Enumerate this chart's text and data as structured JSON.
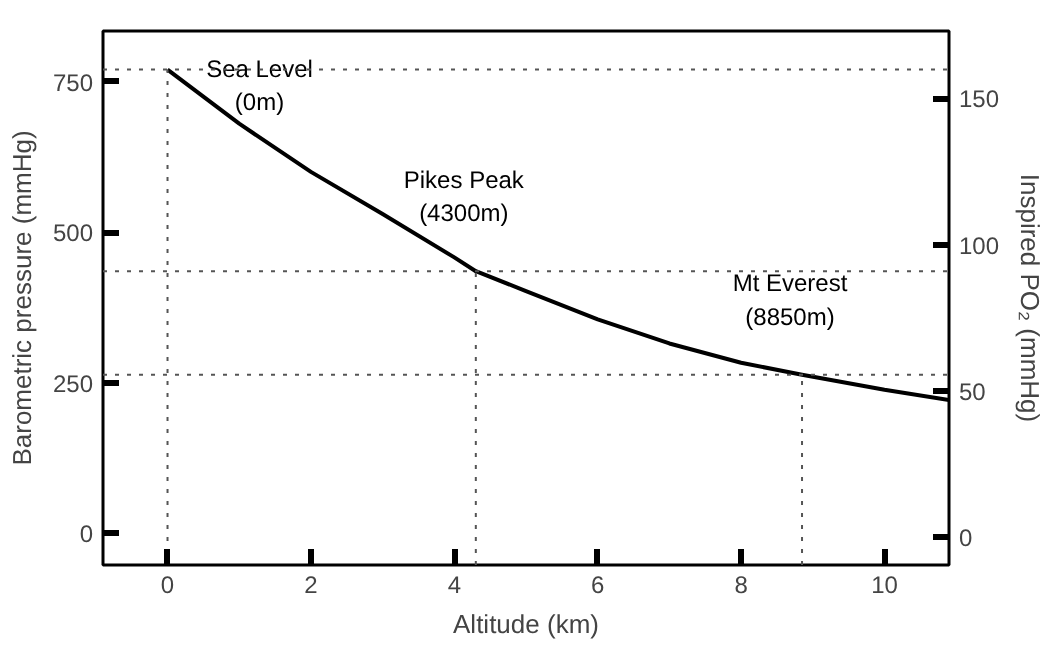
{
  "chart_data": {
    "type": "line",
    "xlabel": "Altitude (km)",
    "ylabel": "Barometric pressure (mmHg)",
    "y2label": "Inspired PO₂ (mmHg)",
    "x": [
      0,
      1,
      2,
      3,
      4,
      4.3,
      5,
      6,
      7,
      8,
      8.85,
      10,
      10.9
    ],
    "series": [
      {
        "color": "#000000",
        "values": [
          770,
          680,
          600,
          530,
          458,
          435,
          402,
          355,
          315,
          283,
          263,
          238,
          221
        ]
      }
    ],
    "xlim": [
      -0.9,
      10.9
    ],
    "xticks": [
      0,
      2,
      4,
      6,
      8,
      10
    ],
    "ylim": [
      -53,
      834
    ],
    "yticks": [
      0,
      250,
      500,
      750
    ],
    "y2lim": [
      -9.4,
      173
    ],
    "y2ticks": [
      0,
      50,
      100,
      150
    ],
    "grid": false,
    "marker": "none",
    "line_style": "solid",
    "ref_lines": [
      {
        "axis": "y",
        "value": 770,
        "color": "#555555",
        "line_style": "dotted"
      },
      {
        "axis": "y",
        "value": 435,
        "color": "#555555",
        "line_style": "dotted"
      },
      {
        "axis": "y",
        "value": 263,
        "color": "#555555",
        "line_style": "dotted"
      },
      {
        "axis": "x",
        "value": 0,
        "color": "#555555",
        "line_style": "dotted"
      },
      {
        "axis": "x",
        "value": 4.3,
        "color": "#555555",
        "line_style": "dotted"
      },
      {
        "axis": "x",
        "value": 8.85,
        "color": "#555555",
        "line_style": "dotted"
      }
    ],
    "annotations": [
      {
        "text": "Sea Level\n(0m)",
        "x": 0,
        "y": 770
      },
      {
        "text": "Pikes Peak\n(4300m)",
        "x": 4.3,
        "y": 435
      },
      {
        "text": "Mt Everest\n(8850m)",
        "x": 8.85,
        "y": 263
      }
    ]
  }
}
